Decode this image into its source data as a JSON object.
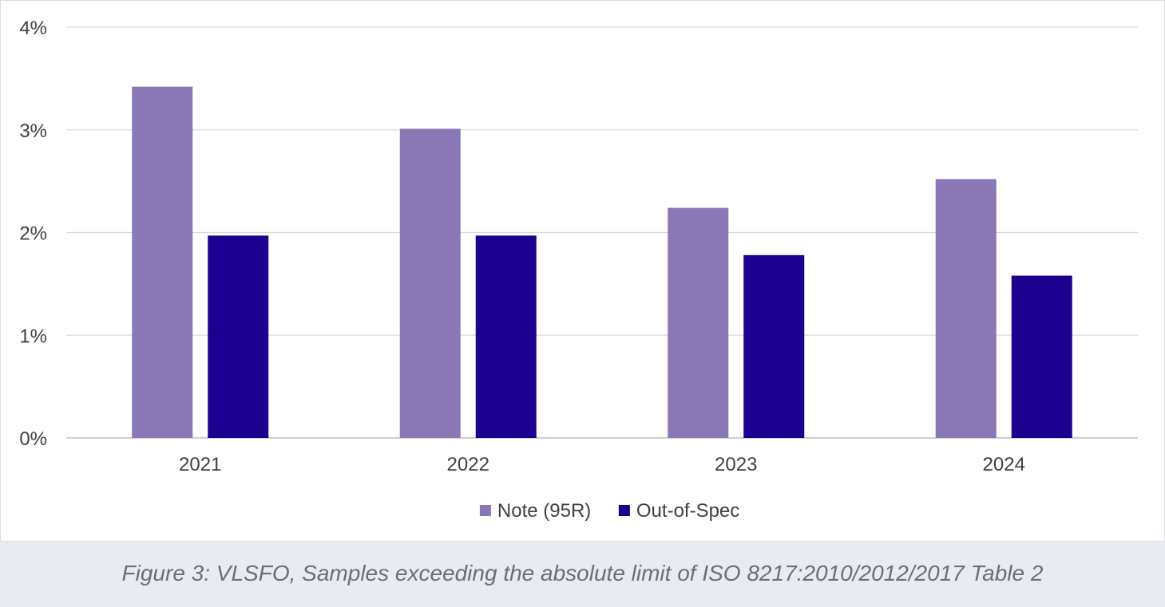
{
  "chart_data": {
    "type": "bar",
    "categories": [
      "2021",
      "2022",
      "2023",
      "2024"
    ],
    "series": [
      {
        "name": "Note (95R)",
        "values": [
          3.42,
          3.01,
          2.24,
          2.52
        ],
        "color": "#8977b6"
      },
      {
        "name": "Out-of-Spec",
        "values": [
          1.97,
          1.97,
          1.78,
          1.58
        ],
        "color": "#1b0091"
      }
    ],
    "y_ticks": [
      "0%",
      "1%",
      "2%",
      "3%",
      "4%"
    ],
    "ylim": [
      0,
      4
    ],
    "grid": true,
    "legend": "bottom-center"
  },
  "caption": "Figure 3: VLSFO, Samples exceeding the absolute limit of ISO 8217:2010/2012/2017 Table 2"
}
